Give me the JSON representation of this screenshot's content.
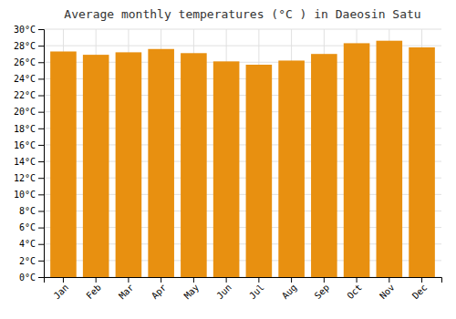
{
  "chart_data": {
    "type": "bar",
    "title": "Average monthly temperatures (°C ) in Daeosin Satu",
    "categories": [
      "Jan",
      "Feb",
      "Mar",
      "Apr",
      "May",
      "Jun",
      "Jul",
      "Aug",
      "Sep",
      "Oct",
      "Nov",
      "Dec"
    ],
    "values": [
      27.3,
      26.9,
      27.2,
      27.6,
      27.1,
      26.1,
      25.7,
      26.2,
      27.0,
      28.3,
      28.6,
      27.8
    ],
    "color": "#E89010",
    "ylim": [
      0,
      30
    ],
    "yticks": [
      {
        "value": 0,
        "label": "0°C"
      },
      {
        "value": 2,
        "label": "2°C"
      },
      {
        "value": 4,
        "label": "4°C"
      },
      {
        "value": 6,
        "label": "6°C"
      },
      {
        "value": 8,
        "label": "8°C"
      },
      {
        "value": 10,
        "label": "10°C"
      },
      {
        "value": 12,
        "label": "12°C"
      },
      {
        "value": 14,
        "label": "14°C"
      },
      {
        "value": 16,
        "label": "16°C"
      },
      {
        "value": 18,
        "label": "18°C"
      },
      {
        "value": 20,
        "label": "20°C"
      },
      {
        "value": 22,
        "label": "22°C"
      },
      {
        "value": 24,
        "label": "24°C"
      },
      {
        "value": 26,
        "label": "26°C"
      },
      {
        "value": 28,
        "label": "28°C"
      },
      {
        "value": 30,
        "label": "30°C"
      }
    ],
    "grid": true
  }
}
